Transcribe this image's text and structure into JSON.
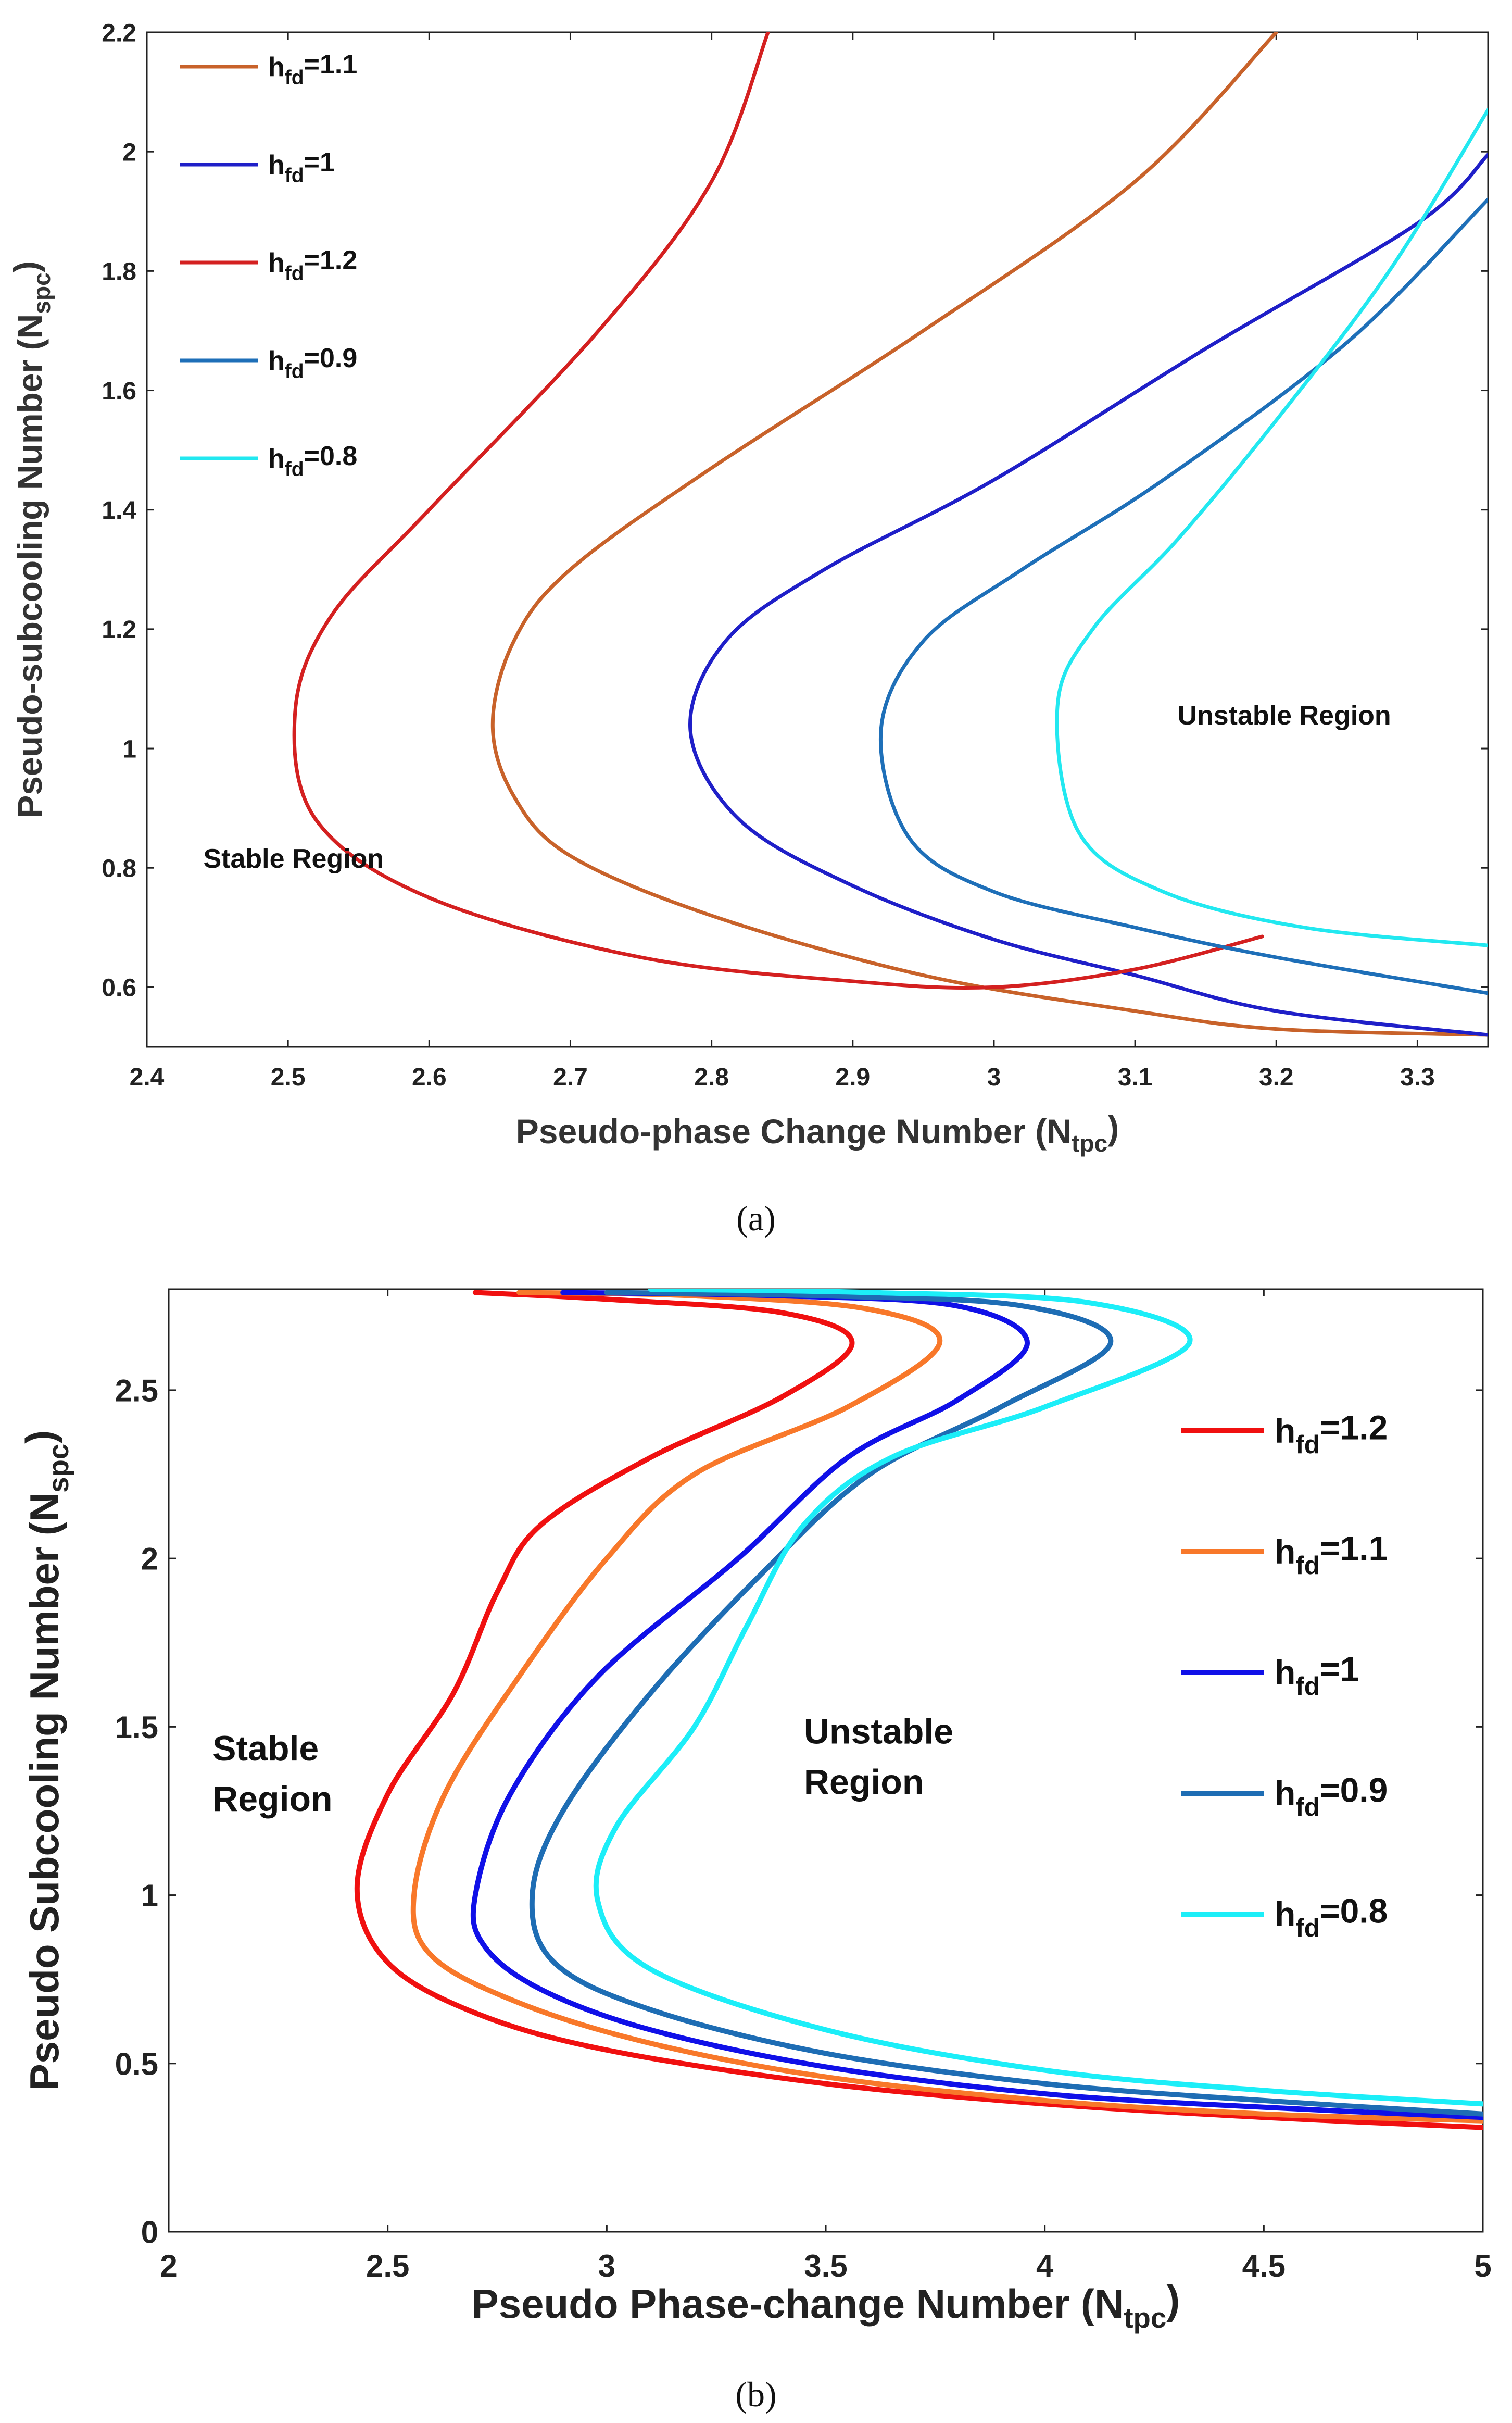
{
  "chart_data": [
    {
      "type": "line",
      "panel": "(a)",
      "xlabel": "Pseudo-phase Change Number",
      "xlabel_sym": "N",
      "xlabel_sub": "tpc",
      "ylabel": "Pseudo-subcooling Number",
      "ylabel_sym": "N",
      "ylabel_sub": "spc",
      "xlim": [
        2.4,
        3.35
      ],
      "ylim": [
        0.5,
        2.2
      ],
      "xticks": [
        "2.4",
        "2.5",
        "2.6",
        "2.7",
        "2.8",
        "2.9",
        "3",
        "3.1",
        "3.2",
        "3.3"
      ],
      "yticks": [
        "0.6",
        "0.8",
        "1",
        "1.2",
        "1.4",
        "1.6",
        "1.8",
        "2",
        "2.2"
      ],
      "legend_position": "top-left",
      "annotations": [
        {
          "text": "Stable Region",
          "x": 2.44,
          "y": 0.8
        },
        {
          "text": "Unstable Region",
          "x": 3.13,
          "y": 1.04
        }
      ],
      "series": [
        {
          "name": "h",
          "sub": "fd",
          "val": "=1.1",
          "color": "#C8622A",
          "points": [
            [
              3.35,
              0.52
            ],
            [
              3.2,
              0.53
            ],
            [
              3.1,
              0.56
            ],
            [
              2.95,
              0.62
            ],
            [
              2.8,
              0.72
            ],
            [
              2.7,
              0.82
            ],
            [
              2.66,
              0.92
            ],
            [
              2.645,
              1.04
            ],
            [
              2.66,
              1.18
            ],
            [
              2.7,
              1.3
            ],
            [
              2.8,
              1.47
            ],
            [
              2.95,
              1.7
            ],
            [
              3.1,
              1.95
            ],
            [
              3.2,
              2.2
            ]
          ]
        },
        {
          "name": "h",
          "sub": "fd",
          "val": "=1",
          "color": "#1F1FC8",
          "points": [
            [
              3.35,
              0.52
            ],
            [
              3.2,
              0.56
            ],
            [
              3.1,
              0.62
            ],
            [
              3.0,
              0.68
            ],
            [
              2.9,
              0.77
            ],
            [
              2.82,
              0.88
            ],
            [
              2.785,
              1.03
            ],
            [
              2.81,
              1.18
            ],
            [
              2.88,
              1.3
            ],
            [
              3.0,
              1.45
            ],
            [
              3.15,
              1.67
            ],
            [
              3.3,
              1.88
            ],
            [
              3.35,
              1.995
            ]
          ]
        },
        {
          "name": "h",
          "sub": "fd",
          "val": "=1.2",
          "color": "#D42020",
          "points": [
            [
              3.19,
              0.685
            ],
            [
              3.1,
              0.63
            ],
            [
              3.0,
              0.6
            ],
            [
              2.9,
              0.61
            ],
            [
              2.75,
              0.65
            ],
            [
              2.6,
              0.75
            ],
            [
              2.52,
              0.88
            ],
            [
              2.505,
              1.06
            ],
            [
              2.53,
              1.22
            ],
            [
              2.6,
              1.4
            ],
            [
              2.72,
              1.7
            ],
            [
              2.8,
              1.95
            ],
            [
              2.84,
              2.2
            ]
          ]
        },
        {
          "name": "h",
          "sub": "fd",
          "val": "=0.9",
          "color": "#1E6FB8",
          "points": [
            [
              3.35,
              0.59
            ],
            [
              3.2,
              0.65
            ],
            [
              3.1,
              0.7
            ],
            [
              3.0,
              0.76
            ],
            [
              2.94,
              0.85
            ],
            [
              2.92,
              1.03
            ],
            [
              2.95,
              1.18
            ],
            [
              3.02,
              1.3
            ],
            [
              3.12,
              1.45
            ],
            [
              3.25,
              1.68
            ],
            [
              3.35,
              1.92
            ]
          ]
        },
        {
          "name": "h",
          "sub": "fd",
          "val": "=0.8",
          "color": "#22E8F0",
          "points": [
            [
              3.35,
              0.67
            ],
            [
              3.22,
              0.7
            ],
            [
              3.12,
              0.76
            ],
            [
              3.06,
              0.86
            ],
            [
              3.045,
              1.07
            ],
            [
              3.07,
              1.2
            ],
            [
              3.13,
              1.35
            ],
            [
              3.2,
              1.55
            ],
            [
              3.28,
              1.8
            ],
            [
              3.35,
              2.07
            ]
          ]
        }
      ]
    },
    {
      "type": "line",
      "panel": "(b)",
      "xlabel": "Pseudo Phase-change Number",
      "xlabel_sym": "N",
      "xlabel_sub": "tpc",
      "ylabel": "Pseudo Subcooling Number",
      "ylabel_sym": "N",
      "ylabel_sub": "spc",
      "xlim": [
        2,
        5
      ],
      "ylim": [
        0,
        2.8
      ],
      "xticks": [
        "2",
        "2.5",
        "3",
        "3.5",
        "4",
        "4.5",
        "5"
      ],
      "yticks": [
        "0",
        "0.5",
        "1",
        "1.5",
        "2",
        "2.5"
      ],
      "legend_position": "right",
      "annotations": [
        {
          "text": "Stable",
          "x": 2.1,
          "y": 1.4
        },
        {
          "text": "Region",
          "x": 2.1,
          "y": 1.25
        },
        {
          "text": "Unstable",
          "x": 3.45,
          "y": 1.45
        },
        {
          "text": "Region",
          "x": 3.45,
          "y": 1.3
        }
      ],
      "series": [
        {
          "name": "h",
          "sub": "fd",
          "val": "=1.2",
          "color": "#F01010",
          "points": [
            [
              5,
              0.31
            ],
            [
              4.5,
              0.34
            ],
            [
              4,
              0.38
            ],
            [
              3.5,
              0.44
            ],
            [
              3,
              0.54
            ],
            [
              2.7,
              0.65
            ],
            [
              2.5,
              0.8
            ],
            [
              2.43,
              1.02
            ],
            [
              2.5,
              1.3
            ],
            [
              2.65,
              1.6
            ],
            [
              2.75,
              1.9
            ],
            [
              2.85,
              2.1
            ],
            [
              3.1,
              2.3
            ],
            [
              3.4,
              2.48
            ],
            [
              3.56,
              2.64
            ],
            [
              3.4,
              2.73
            ],
            [
              3.0,
              2.77
            ],
            [
              2.7,
              2.79
            ]
          ]
        },
        {
          "name": "h",
          "sub": "fd",
          "val": "=1.1",
          "color": "#F8782A",
          "points": [
            [
              5,
              0.33
            ],
            [
              4.5,
              0.35
            ],
            [
              4,
              0.39
            ],
            [
              3.5,
              0.46
            ],
            [
              3.1,
              0.56
            ],
            [
              2.8,
              0.68
            ],
            [
              2.6,
              0.82
            ],
            [
              2.56,
              1.0
            ],
            [
              2.63,
              1.3
            ],
            [
              2.8,
              1.65
            ],
            [
              3.0,
              2.0
            ],
            [
              3.2,
              2.25
            ],
            [
              3.55,
              2.45
            ],
            [
              3.76,
              2.64
            ],
            [
              3.6,
              2.74
            ],
            [
              3.2,
              2.78
            ],
            [
              2.8,
              2.79
            ]
          ]
        },
        {
          "name": "h",
          "sub": "fd",
          "val": "=1",
          "color": "#1010E8",
          "points": [
            [
              5,
              0.34
            ],
            [
              4.5,
              0.37
            ],
            [
              4,
              0.41
            ],
            [
              3.5,
              0.49
            ],
            [
              3.1,
              0.6
            ],
            [
              2.85,
              0.72
            ],
            [
              2.72,
              0.85
            ],
            [
              2.7,
              1.0
            ],
            [
              2.78,
              1.3
            ],
            [
              2.98,
              1.65
            ],
            [
              3.3,
              2.0
            ],
            [
              3.55,
              2.3
            ],
            [
              3.8,
              2.47
            ],
            [
              3.96,
              2.64
            ],
            [
              3.8,
              2.75
            ],
            [
              3.4,
              2.78
            ],
            [
              2.9,
              2.79
            ]
          ]
        },
        {
          "name": "h",
          "sub": "fd",
          "val": "=0.9",
          "color": "#1E6DB4",
          "points": [
            [
              5,
              0.35
            ],
            [
              4.5,
              0.39
            ],
            [
              4,
              0.44
            ],
            [
              3.5,
              0.53
            ],
            [
              3.1,
              0.66
            ],
            [
              2.88,
              0.8
            ],
            [
              2.83,
              1.0
            ],
            [
              2.9,
              1.25
            ],
            [
              3.1,
              1.6
            ],
            [
              3.35,
              1.95
            ],
            [
              3.6,
              2.25
            ],
            [
              3.9,
              2.45
            ],
            [
              4.15,
              2.64
            ],
            [
              3.95,
              2.75
            ],
            [
              3.5,
              2.78
            ],
            [
              3.0,
              2.79
            ]
          ]
        },
        {
          "name": "h",
          "sub": "fd",
          "val": "=0.8",
          "color": "#1CEEF8",
          "points": [
            [
              5,
              0.38
            ],
            [
              4.5,
              0.42
            ],
            [
              4,
              0.48
            ],
            [
              3.5,
              0.6
            ],
            [
              3.1,
              0.78
            ],
            [
              2.98,
              0.98
            ],
            [
              3.02,
              1.2
            ],
            [
              3.2,
              1.5
            ],
            [
              3.32,
              1.8
            ],
            [
              3.45,
              2.1
            ],
            [
              3.65,
              2.3
            ],
            [
              4.0,
              2.45
            ],
            [
              4.33,
              2.64
            ],
            [
              4.1,
              2.76
            ],
            [
              3.6,
              2.79
            ],
            [
              3.1,
              2.8
            ]
          ]
        }
      ]
    }
  ],
  "captions": [
    "(a)",
    "(b)"
  ]
}
